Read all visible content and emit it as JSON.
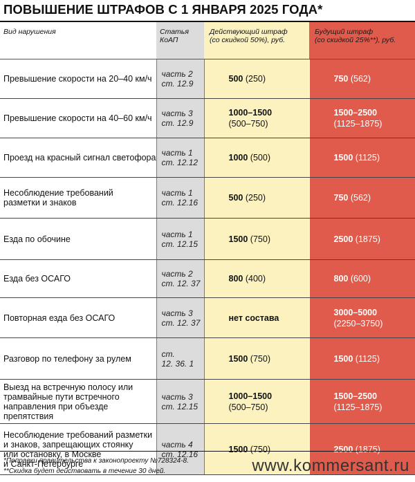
{
  "title": "ПОВЫШЕНИЕ ШТРАФОВ С 1 ЯНВАРЯ 2025 ГОДА*",
  "headers": {
    "violation": "Вид нарушения",
    "article": "Статья КоАП",
    "current_line1": "Действующий штраф",
    "current_line2": "(со скидкой 50%), руб.",
    "future_line1": "Будущий штраф",
    "future_line2": "(со скидкой 25%**), руб."
  },
  "rows": [
    {
      "violation": [
        "Превышение скорости на 20–40 км/ч"
      ],
      "article": [
        "часть 2",
        "ст. 12.9"
      ],
      "current_main": "500",
      "current_disc": "(250)",
      "current_multiline": false,
      "future_main": "750",
      "future_disc": "(562)",
      "future_multiline": false
    },
    {
      "violation": [
        "Превышение скорости на 40–60 км/ч"
      ],
      "article": [
        "часть 3",
        "ст. 12.9"
      ],
      "current_main": "1000–1500",
      "current_disc": "(500–750)",
      "current_multiline": true,
      "future_main": "1500–2500",
      "future_disc": "(1125–1875)",
      "future_multiline": true
    },
    {
      "violation": [
        "Проезд на красный сигнал светофора"
      ],
      "article": [
        "часть 1",
        "ст. 12.12"
      ],
      "current_main": "1000",
      "current_disc": "(500)",
      "current_multiline": false,
      "future_main": "1500",
      "future_disc": "(1125)",
      "future_multiline": false
    },
    {
      "violation": [
        "Несоблюдение требований",
        "разметки и знаков"
      ],
      "article": [
        "часть 1",
        "ст. 12.16"
      ],
      "current_main": "500",
      "current_disc": "(250)",
      "current_multiline": false,
      "future_main": "750",
      "future_disc": "(562)",
      "future_multiline": false
    },
    {
      "violation": [
        "Езда по обочине"
      ],
      "article": [
        "часть 1",
        "ст. 12.15"
      ],
      "current_main": "1500",
      "current_disc": "(750)",
      "current_multiline": false,
      "future_main": "2500",
      "future_disc": "(1875)",
      "future_multiline": false
    },
    {
      "violation": [
        "Езда без ОСАГО"
      ],
      "article": [
        "часть 2",
        "ст. 12. 37"
      ],
      "current_main": "800",
      "current_disc": "(400)",
      "current_multiline": false,
      "future_main": "800",
      "future_disc": "(600)",
      "future_multiline": false
    },
    {
      "violation": [
        "Повторная езда без ОСАГО"
      ],
      "article": [
        "часть 3",
        "ст. 12. 37"
      ],
      "current_main": "нет состава",
      "current_disc": "",
      "current_multiline": false,
      "future_main": "3000–5000",
      "future_disc": "(2250–3750)",
      "future_multiline": true
    },
    {
      "violation": [
        "Разговор по телефону за рулем"
      ],
      "article": [
        "ст.",
        "12. 36. 1"
      ],
      "current_main": "1500",
      "current_disc": "(750)",
      "current_multiline": false,
      "future_main": "1500",
      "future_disc": "(1125)",
      "future_multiline": false
    },
    {
      "violation": [
        "Выезд на встречную полосу или",
        "трамвайные пути встречного",
        "направления при объезде препятствия"
      ],
      "article": [
        "часть 3",
        "ст. 12.15"
      ],
      "current_main": "1000–1500",
      "current_disc": "(500–750)",
      "current_multiline": true,
      "future_main": "1500–2500",
      "future_disc": "(1125–1875)",
      "future_multiline": true
    },
    {
      "violation": [
        "Несоблюдение требований разметки",
        "и знаков, запрещающих стоянку",
        "или остановку, в Москве",
        "и Санкт-Петербурге"
      ],
      "article": [
        "часть 4",
        "ст. 12.16"
      ],
      "current_main": "1500",
      "current_disc": "(750)",
      "current_multiline": false,
      "future_main": "2500",
      "future_disc": "(1875)",
      "future_multiline": false
    }
  ],
  "footnotes": {
    "note1": "*Поправки правительства к законопроекту №728324-8.",
    "note2": "**Скидка будет действовать в течение 30 дней."
  },
  "source": "www.kommersant.ru"
}
